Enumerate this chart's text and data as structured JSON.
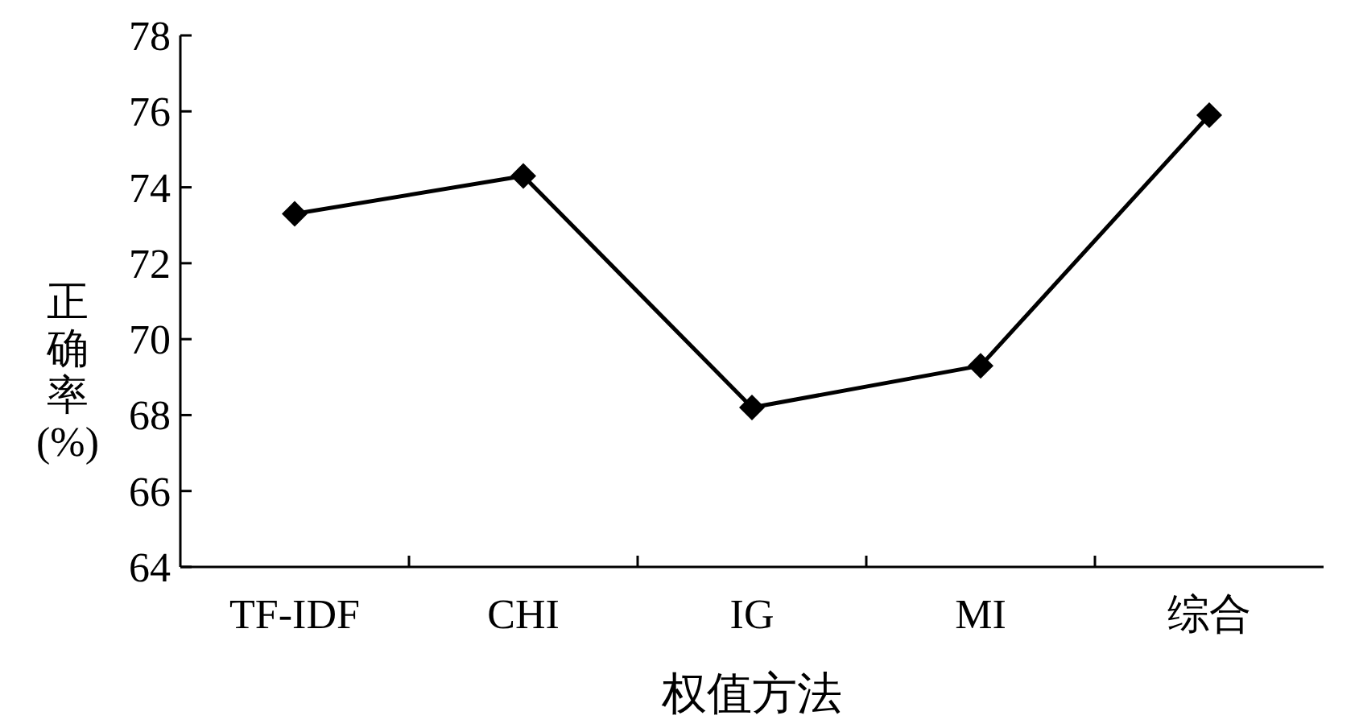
{
  "chart_data": {
    "type": "line",
    "xlabel": "权值方法",
    "ylabel": "正确率(%)",
    "categories": [
      "TF-IDF",
      "CHI",
      "IG",
      "MI",
      "综合"
    ],
    "values": [
      73.3,
      74.3,
      68.2,
      69.3,
      75.9
    ],
    "color": "#000000",
    "marker": "diamond",
    "line_style": "solid",
    "ylim": [
      64,
      78
    ],
    "yticks": [
      64,
      66,
      68,
      70,
      72,
      74,
      76,
      78
    ]
  }
}
